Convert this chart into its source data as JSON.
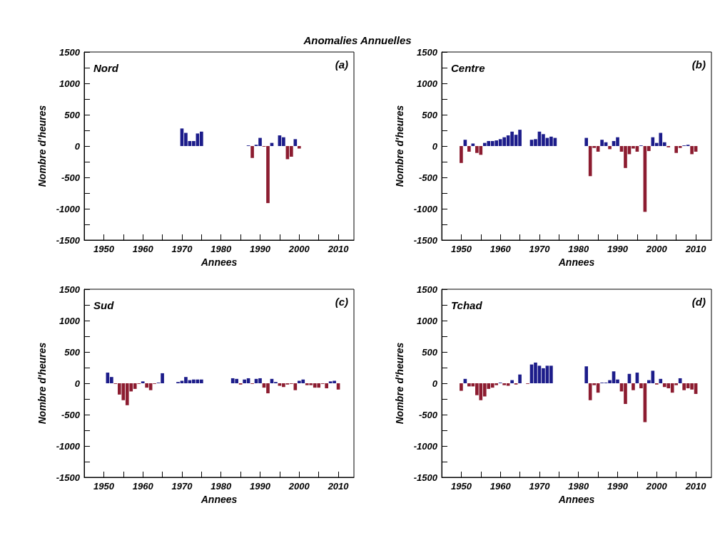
{
  "chart_data": [
    {
      "type": "bar",
      "title": "Nord",
      "xlabel": "Annees",
      "ylabel": "Nombre d'heures",
      "annotations": [
        "Anomalies Annuelles",
        "(a)"
      ],
      "x": [
        1970,
        1971,
        1972,
        1973,
        1974,
        1975,
        1987,
        1988,
        1989,
        1990,
        1991,
        1992,
        1993,
        1995,
        1996,
        1997,
        1998,
        1999,
        2000
      ],
      "values": [
        280,
        210,
        80,
        80,
        200,
        230,
        10,
        -190,
        20,
        130,
        -10,
        -910,
        50,
        170,
        140,
        -210,
        -170,
        110,
        -40
      ],
      "colors": [
        "#1c1c8a",
        "#1c1c8a",
        "#1c1c8a",
        "#1c1c8a",
        "#1c1c8a",
        "#1c1c8a",
        "#1c1c8a",
        "#8c1c30",
        "#1c1c8a",
        "#1c1c8a",
        "#8c1c30",
        "#8c1c30",
        "#1c1c8a",
        "#1c1c8a",
        "#1c1c8a",
        "#8c1c30",
        "#8c1c30",
        "#1c1c8a",
        "#8c1c30"
      ],
      "xlim": [
        1945,
        2014
      ],
      "xticks": [
        1950,
        {
          "value": 1955,
          "label": null
        },
        1960,
        {
          "value": 1965,
          "label": null
        },
        1970,
        {
          "value": 1975,
          "label": null
        },
        1980,
        {
          "value": 1985,
          "label": null
        },
        1990,
        {
          "value": 1995,
          "label": null
        },
        2000,
        {
          "value": 2005,
          "label": null
        },
        2010
      ],
      "ylim": [
        -1500,
        1500
      ],
      "yticks": [
        -1500,
        {
          "value": -1250,
          "label": null
        },
        -1000,
        {
          "value": -750,
          "label": null
        },
        -500,
        {
          "value": -250,
          "label": null
        },
        0,
        {
          "value": 250,
          "label": null
        },
        500,
        {
          "value": 750,
          "label": null
        },
        1000,
        {
          "value": 1250,
          "label": null
        },
        1500
      ]
    },
    {
      "type": "bar",
      "title": "Centre",
      "xlabel": "Annees",
      "ylabel": "Nombre d'heures",
      "annotations": [
        "(b)"
      ],
      "x": [
        1950,
        1951,
        1952,
        1953,
        1954,
        1955,
        1956,
        1957,
        1958,
        1959,
        1960,
        1961,
        1962,
        1963,
        1964,
        1965,
        1968,
        1969,
        1970,
        1971,
        1972,
        1973,
        1974,
        1982,
        1983,
        1984,
        1985,
        1986,
        1987,
        1988,
        1989,
        1990,
        1991,
        1992,
        1993,
        1994,
        1995,
        1996,
        1997,
        1998,
        1999,
        2000,
        2001,
        2002,
        2003,
        2005,
        2006,
        2007,
        2008,
        2009,
        2010
      ],
      "values": [
        -270,
        100,
        -90,
        40,
        -110,
        -140,
        50,
        80,
        80,
        90,
        110,
        140,
        170,
        230,
        180,
        260,
        100,
        110,
        230,
        190,
        130,
        150,
        130,
        130,
        -480,
        -30,
        -90,
        100,
        60,
        -50,
        80,
        140,
        -90,
        -350,
        -130,
        -40,
        -90,
        10,
        -1050,
        -80,
        140,
        50,
        210,
        60,
        -20,
        -110,
        -30,
        10,
        20,
        -130,
        -90
      ],
      "colors": [
        "#8c1c30",
        "#1c1c8a",
        "#8c1c30",
        "#1c1c8a",
        "#8c1c30",
        "#8c1c30",
        "#1c1c8a",
        "#1c1c8a",
        "#1c1c8a",
        "#1c1c8a",
        "#1c1c8a",
        "#1c1c8a",
        "#1c1c8a",
        "#1c1c8a",
        "#1c1c8a",
        "#1c1c8a",
        "#1c1c8a",
        "#1c1c8a",
        "#1c1c8a",
        "#1c1c8a",
        "#1c1c8a",
        "#1c1c8a",
        "#1c1c8a",
        "#1c1c8a",
        "#8c1c30",
        "#8c1c30",
        "#8c1c30",
        "#1c1c8a",
        "#1c1c8a",
        "#8c1c30",
        "#1c1c8a",
        "#1c1c8a",
        "#8c1c30",
        "#8c1c30",
        "#8c1c30",
        "#8c1c30",
        "#8c1c30",
        "#1c1c8a",
        "#8c1c30",
        "#8c1c30",
        "#1c1c8a",
        "#1c1c8a",
        "#1c1c8a",
        "#1c1c8a",
        "#8c1c30",
        "#8c1c30",
        "#8c1c30",
        "#1c1c8a",
        "#1c1c8a",
        "#8c1c30",
        "#8c1c30"
      ],
      "xlim": [
        1945,
        2014
      ],
      "xticks": [
        1950,
        {
          "value": 1955,
          "label": null
        },
        1960,
        {
          "value": 1965,
          "label": null
        },
        1970,
        {
          "value": 1975,
          "label": null
        },
        1980,
        {
          "value": 1985,
          "label": null
        },
        1990,
        {
          "value": 1995,
          "label": null
        },
        2000,
        {
          "value": 2005,
          "label": null
        },
        2010
      ],
      "ylim": [
        -1500,
        1500
      ],
      "yticks": [
        -1500,
        {
          "value": -1250,
          "label": null
        },
        -1000,
        {
          "value": -750,
          "label": null
        },
        -500,
        {
          "value": -250,
          "label": null
        },
        0,
        {
          "value": 250,
          "label": null
        },
        500,
        {
          "value": 750,
          "label": null
        },
        1000,
        {
          "value": 1250,
          "label": null
        },
        1500
      ]
    },
    {
      "type": "bar",
      "title": "Sud",
      "xlabel": "Annees",
      "ylabel": "Nombre d'heures",
      "annotations": [
        "(c)"
      ],
      "x": [
        1951,
        1952,
        1953,
        1954,
        1955,
        1956,
        1957,
        1958,
        1959,
        1960,
        1961,
        1962,
        1963,
        1964,
        1965,
        1969,
        1970,
        1971,
        1972,
        1973,
        1974,
        1975,
        1983,
        1984,
        1985,
        1986,
        1987,
        1988,
        1989,
        1990,
        1991,
        1992,
        1993,
        1994,
        1995,
        1996,
        1997,
        1998,
        1999,
        2000,
        2001,
        2002,
        2003,
        2004,
        2005,
        2006,
        2007,
        2008,
        2009,
        2010
      ],
      "values": [
        170,
        100,
        -10,
        -180,
        -270,
        -350,
        -130,
        -90,
        -10,
        30,
        -70,
        -110,
        -10,
        10,
        160,
        20,
        40,
        100,
        50,
        60,
        60,
        60,
        80,
        70,
        -20,
        60,
        80,
        -10,
        70,
        80,
        -70,
        -160,
        70,
        20,
        -40,
        -60,
        -20,
        -10,
        -110,
        40,
        60,
        -30,
        -30,
        -70,
        -70,
        -10,
        -80,
        30,
        40,
        -100
      ],
      "colors": [
        "#1c1c8a",
        "#1c1c8a",
        "#8c1c30",
        "#8c1c30",
        "#8c1c30",
        "#8c1c30",
        "#8c1c30",
        "#8c1c30",
        "#8c1c30",
        "#1c1c8a",
        "#8c1c30",
        "#8c1c30",
        "#8c1c30",
        "#1c1c8a",
        "#1c1c8a",
        "#1c1c8a",
        "#1c1c8a",
        "#1c1c8a",
        "#1c1c8a",
        "#1c1c8a",
        "#1c1c8a",
        "#1c1c8a",
        "#1c1c8a",
        "#1c1c8a",
        "#8c1c30",
        "#1c1c8a",
        "#1c1c8a",
        "#8c1c30",
        "#1c1c8a",
        "#1c1c8a",
        "#8c1c30",
        "#8c1c30",
        "#1c1c8a",
        "#1c1c8a",
        "#8c1c30",
        "#8c1c30",
        "#8c1c30",
        "#8c1c30",
        "#8c1c30",
        "#1c1c8a",
        "#1c1c8a",
        "#8c1c30",
        "#8c1c30",
        "#8c1c30",
        "#8c1c30",
        "#8c1c30",
        "#8c1c30",
        "#1c1c8a",
        "#1c1c8a",
        "#8c1c30"
      ],
      "xlim": [
        1945,
        2014
      ],
      "xticks": [
        1950,
        {
          "value": 1955,
          "label": null
        },
        1960,
        {
          "value": 1965,
          "label": null
        },
        1970,
        {
          "value": 1975,
          "label": null
        },
        1980,
        {
          "value": 1985,
          "label": null
        },
        1990,
        {
          "value": 1995,
          "label": null
        },
        2000,
        {
          "value": 2005,
          "label": null
        },
        2010
      ],
      "ylim": [
        -1500,
        1500
      ],
      "yticks": [
        -1500,
        {
          "value": -1250,
          "label": null
        },
        -1000,
        {
          "value": -750,
          "label": null
        },
        -500,
        {
          "value": -250,
          "label": null
        },
        0,
        {
          "value": 250,
          "label": null
        },
        500,
        {
          "value": 750,
          "label": null
        },
        1000,
        {
          "value": 1250,
          "label": null
        },
        1500
      ]
    },
    {
      "type": "bar",
      "title": "Tchad",
      "xlabel": "Annees",
      "ylabel": "Nombre d'heures",
      "annotations": [
        "(d)"
      ],
      "x": [
        1950,
        1951,
        1952,
        1953,
        1954,
        1955,
        1956,
        1957,
        1958,
        1959,
        1960,
        1961,
        1962,
        1963,
        1964,
        1965,
        1967,
        1968,
        1969,
        1970,
        1971,
        1972,
        1973,
        1982,
        1983,
        1984,
        1985,
        1986,
        1987,
        1988,
        1989,
        1990,
        1991,
        1992,
        1993,
        1994,
        1995,
        1996,
        1997,
        1998,
        1999,
        2000,
        2001,
        2002,
        2003,
        2004,
        2005,
        2006,
        2007,
        2008,
        2009,
        2010
      ],
      "values": [
        -120,
        70,
        -50,
        -50,
        -190,
        -270,
        -210,
        -90,
        -70,
        -30,
        10,
        -30,
        -40,
        50,
        -20,
        140,
        -10,
        300,
        330,
        280,
        240,
        280,
        280,
        270,
        -270,
        -30,
        -150,
        10,
        10,
        50,
        190,
        60,
        -130,
        -330,
        150,
        -110,
        170,
        -80,
        -620,
        50,
        200,
        -20,
        70,
        -60,
        -80,
        -150,
        -30,
        80,
        -110,
        -80,
        -100,
        -170
      ],
      "colors": [
        "#8c1c30",
        "#1c1c8a",
        "#8c1c30",
        "#8c1c30",
        "#8c1c30",
        "#8c1c30",
        "#8c1c30",
        "#8c1c30",
        "#8c1c30",
        "#8c1c30",
        "#1c1c8a",
        "#8c1c30",
        "#8c1c30",
        "#1c1c8a",
        "#8c1c30",
        "#1c1c8a",
        "#8c1c30",
        "#1c1c8a",
        "#1c1c8a",
        "#1c1c8a",
        "#1c1c8a",
        "#1c1c8a",
        "#1c1c8a",
        "#1c1c8a",
        "#8c1c30",
        "#8c1c30",
        "#8c1c30",
        "#1c1c8a",
        "#1c1c8a",
        "#1c1c8a",
        "#1c1c8a",
        "#1c1c8a",
        "#8c1c30",
        "#8c1c30",
        "#1c1c8a",
        "#8c1c30",
        "#1c1c8a",
        "#8c1c30",
        "#8c1c30",
        "#1c1c8a",
        "#1c1c8a",
        "#8c1c30",
        "#1c1c8a",
        "#8c1c30",
        "#8c1c30",
        "#8c1c30",
        "#8c1c30",
        "#1c1c8a",
        "#8c1c30",
        "#8c1c30",
        "#8c1c30",
        "#8c1c30"
      ],
      "xlim": [
        1945,
        2014
      ],
      "xticks": [
        1950,
        {
          "value": 1955,
          "label": null
        },
        1960,
        {
          "value": 1965,
          "label": null
        },
        1970,
        {
          "value": 1975,
          "label": null
        },
        1980,
        {
          "value": 1985,
          "label": null
        },
        1990,
        {
          "value": 1995,
          "label": null
        },
        2000,
        {
          "value": 2005,
          "label": null
        },
        2010
      ],
      "ylim": [
        -1500,
        1500
      ],
      "yticks": [
        -1500,
        {
          "value": -1250,
          "label": null
        },
        -1000,
        {
          "value": -750,
          "label": null
        },
        -500,
        {
          "value": -250,
          "label": null
        },
        0,
        {
          "value": 250,
          "label": null
        },
        500,
        {
          "value": 750,
          "label": null
        },
        1000,
        {
          "value": 1250,
          "label": null
        },
        1500
      ]
    }
  ]
}
